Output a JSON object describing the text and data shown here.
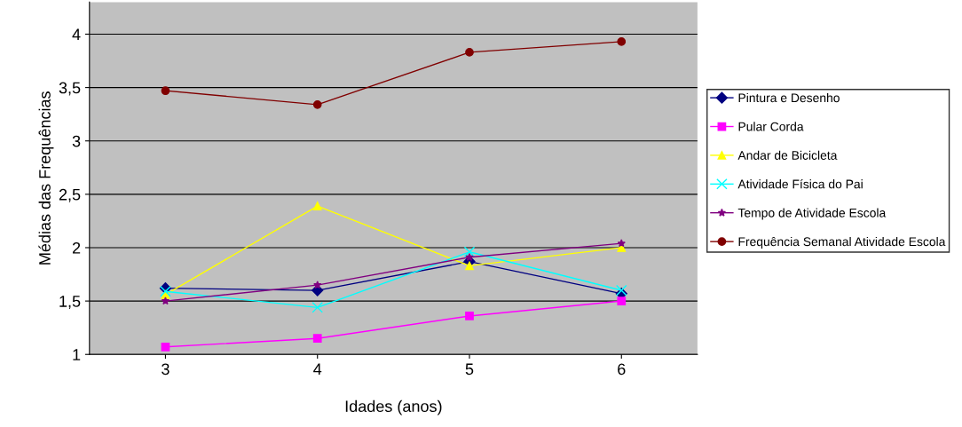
{
  "chart_data": {
    "type": "line",
    "xlabel": "Idades (anos)",
    "ylabel": "Médias das Frequências",
    "categories": [
      "3",
      "4",
      "5",
      "6"
    ],
    "ylim": [
      1,
      4.3
    ],
    "yticks": [
      1,
      {
        "value": 1.5,
        "label": "1,5"
      },
      2,
      {
        "value": 2.5,
        "label": "2,5"
      },
      3,
      {
        "value": 3.5,
        "label": "3,5"
      },
      4
    ],
    "grid": "y",
    "legend": "right",
    "line_style": "solid",
    "series": [
      {
        "name": "Pintura e Desenho",
        "color": "#000080",
        "marker": "diamond",
        "values": [
          1.62,
          1.6,
          1.87,
          1.57
        ]
      },
      {
        "name": "Pular Corda",
        "color": "#ff00ff",
        "marker": "square",
        "values": [
          1.07,
          1.15,
          1.36,
          1.5
        ]
      },
      {
        "name": "Andar de Bicicleta",
        "color": "#ffff00",
        "marker": "triangle",
        "values": [
          1.56,
          2.39,
          1.83,
          2.0
        ]
      },
      {
        "name": "Atividade Física do Pai",
        "color": "#00ffff",
        "marker": "cross",
        "values": [
          1.59,
          1.44,
          1.96,
          1.6
        ]
      },
      {
        "name": "Tempo de Atividade Escola",
        "color": "#800080",
        "marker": "star",
        "values": [
          1.5,
          1.65,
          1.91,
          2.04
        ]
      },
      {
        "name": "Frequência Semanal Atividade Escola",
        "color": "#800000",
        "marker": "circle",
        "values": [
          3.47,
          3.34,
          3.83,
          3.93
        ]
      }
    ]
  }
}
